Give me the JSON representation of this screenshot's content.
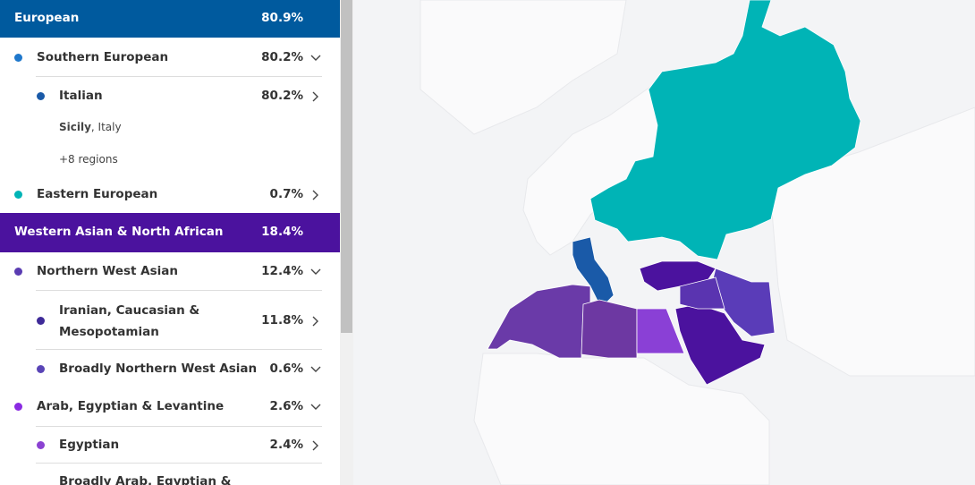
{
  "panel": {
    "rows": [
      {
        "label": "European",
        "percent": "80.9%"
      },
      {
        "label": "Southern European",
        "percent": "80.2%"
      },
      {
        "label": "Italian",
        "percent": "80.2%"
      },
      {
        "label": "Eastern European",
        "percent": "0.7%"
      },
      {
        "label": "Western Asian & North African",
        "percent": "18.4%"
      },
      {
        "label": "Northern West Asian",
        "percent": "12.4%"
      },
      {
        "label": "Iranian, Caucasian & Mesopotamian",
        "percent": "11.8%"
      },
      {
        "label": "Broadly Northern West Asian",
        "percent": "0.6%"
      },
      {
        "label": "Arab, Egyptian & Levantine",
        "percent": "2.6%"
      },
      {
        "label": "Egyptian",
        "percent": "2.4%"
      },
      {
        "label": "Broadly Arab, Egyptian &"
      }
    ],
    "region_note": {
      "bold": "Sicily",
      "rest": ", Italy"
    },
    "more_regions": "+8 regions"
  }
}
